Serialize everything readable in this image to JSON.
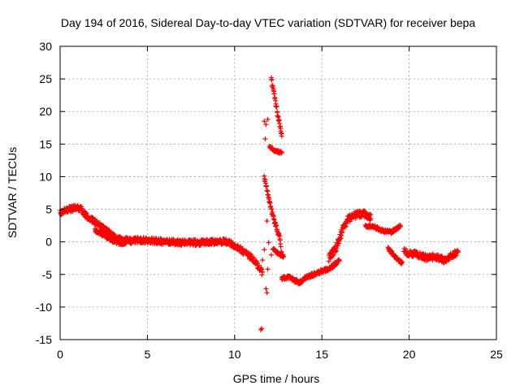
{
  "chart_data": {
    "type": "scatter",
    "title": "Day 194 of 2016, Sidereal Day-to-day VTEC variation (SDTVAR) for receiver bepa",
    "xlabel": "GPS time / hours",
    "ylabel": "SDTVAR / TECUs",
    "xlim": [
      0,
      25
    ],
    "ylim": [
      -15,
      30
    ],
    "xticks": [
      0,
      5,
      10,
      15,
      20,
      25
    ],
    "yticks": [
      -15,
      -10,
      -5,
      0,
      5,
      10,
      15,
      20,
      25,
      30
    ],
    "grid": true,
    "marker": "+",
    "color": "#ff0000",
    "trend_segments": [
      {
        "x": [
          0.0,
          0.5,
          1.0,
          1.2,
          1.5,
          2.0,
          2.5,
          3.0,
          3.5,
          4.0,
          4.5,
          5.0,
          6.0,
          7.0,
          8.0,
          9.0,
          9.5,
          10.0,
          10.5,
          11.0,
          11.3,
          11.6
        ],
        "y": [
          4.5,
          5.0,
          5.3,
          5.0,
          4.0,
          3.0,
          2.0,
          1.0,
          0.3,
          0.2,
          0.3,
          0.2,
          0.0,
          -0.1,
          -0.1,
          0.0,
          0.0,
          -0.5,
          -1.5,
          -2.5,
          -3.5,
          -4.8
        ],
        "spread": 0.9
      },
      {
        "x": [
          2.0,
          2.5,
          3.0,
          3.5,
          4.0
        ],
        "y": [
          1.8,
          1.0,
          0.2,
          -0.3,
          0.2
        ],
        "spread": 0.5
      },
      {
        "x": [
          11.7,
          12.0,
          12.3,
          12.6,
          12.7
        ],
        "y": [
          10.0,
          6.0,
          3.0,
          0.5,
          -2.2
        ],
        "spread": 0.6
      },
      {
        "x": [
          12.1,
          12.3,
          12.5,
          12.7
        ],
        "y": [
          25.0,
          22.0,
          19.0,
          16.5
        ],
        "spread": 0.7
      },
      {
        "x": [
          12.0,
          12.3,
          12.7
        ],
        "y": [
          14.5,
          14.0,
          13.7
        ],
        "spread": 0.4
      },
      {
        "x": [
          12.2,
          12.5,
          12.8
        ],
        "y": [
          -1.0,
          -1.8,
          -2.2
        ],
        "spread": 0.4
      },
      {
        "x": [
          12.7,
          13.2,
          13.7,
          14.2,
          14.7,
          15.0,
          15.5,
          16.0
        ],
        "y": [
          -5.5,
          -5.5,
          -6.3,
          -5.3,
          -4.8,
          -4.5,
          -4.0,
          -2.8
        ],
        "spread": 0.6
      },
      {
        "x": [
          15.4,
          15.8,
          16.0,
          16.2,
          16.5,
          17.0,
          17.5,
          17.8
        ],
        "y": [
          -2.5,
          -1.0,
          0.5,
          2.0,
          3.5,
          4.2,
          4.3,
          3.7
        ],
        "spread": 1.1
      },
      {
        "x": [
          17.5,
          18.0,
          18.5,
          19.0,
          19.5
        ],
        "y": [
          2.5,
          2.3,
          1.7,
          1.5,
          2.5
        ],
        "spread": 0.5
      },
      {
        "x": [
          18.8,
          19.2,
          19.6
        ],
        "y": [
          -1.0,
          -2.3,
          -3.3
        ],
        "spread": 0.5
      },
      {
        "x": [
          19.7,
          20.5,
          21.0,
          21.5,
          22.0,
          22.5,
          22.8
        ],
        "y": [
          -1.5,
          -2.0,
          -2.5,
          -2.2,
          -2.8,
          -2.0,
          -1.6
        ],
        "spread": 1.0
      }
    ],
    "isolated_points": [
      {
        "x": 11.5,
        "y": -13.5
      },
      {
        "x": 11.55,
        "y": -13.3
      },
      {
        "x": 11.8,
        "y": -7.2
      },
      {
        "x": 11.85,
        "y": -7.8
      },
      {
        "x": 11.7,
        "y": 18.5
      },
      {
        "x": 11.8,
        "y": 18.0
      },
      {
        "x": 11.9,
        "y": 18.8
      },
      {
        "x": 11.75,
        "y": 15.8
      },
      {
        "x": 12.0,
        "y": 6.2
      },
      {
        "x": 11.85,
        "y": 3.2
      },
      {
        "x": 11.9,
        "y": -4.2
      },
      {
        "x": 11.95,
        "y": -0.1
      },
      {
        "x": 11.6,
        "y": -2.8
      },
      {
        "x": 12.1,
        "y": -2.0
      },
      {
        "x": 11.7,
        "y": -1.2
      }
    ]
  }
}
